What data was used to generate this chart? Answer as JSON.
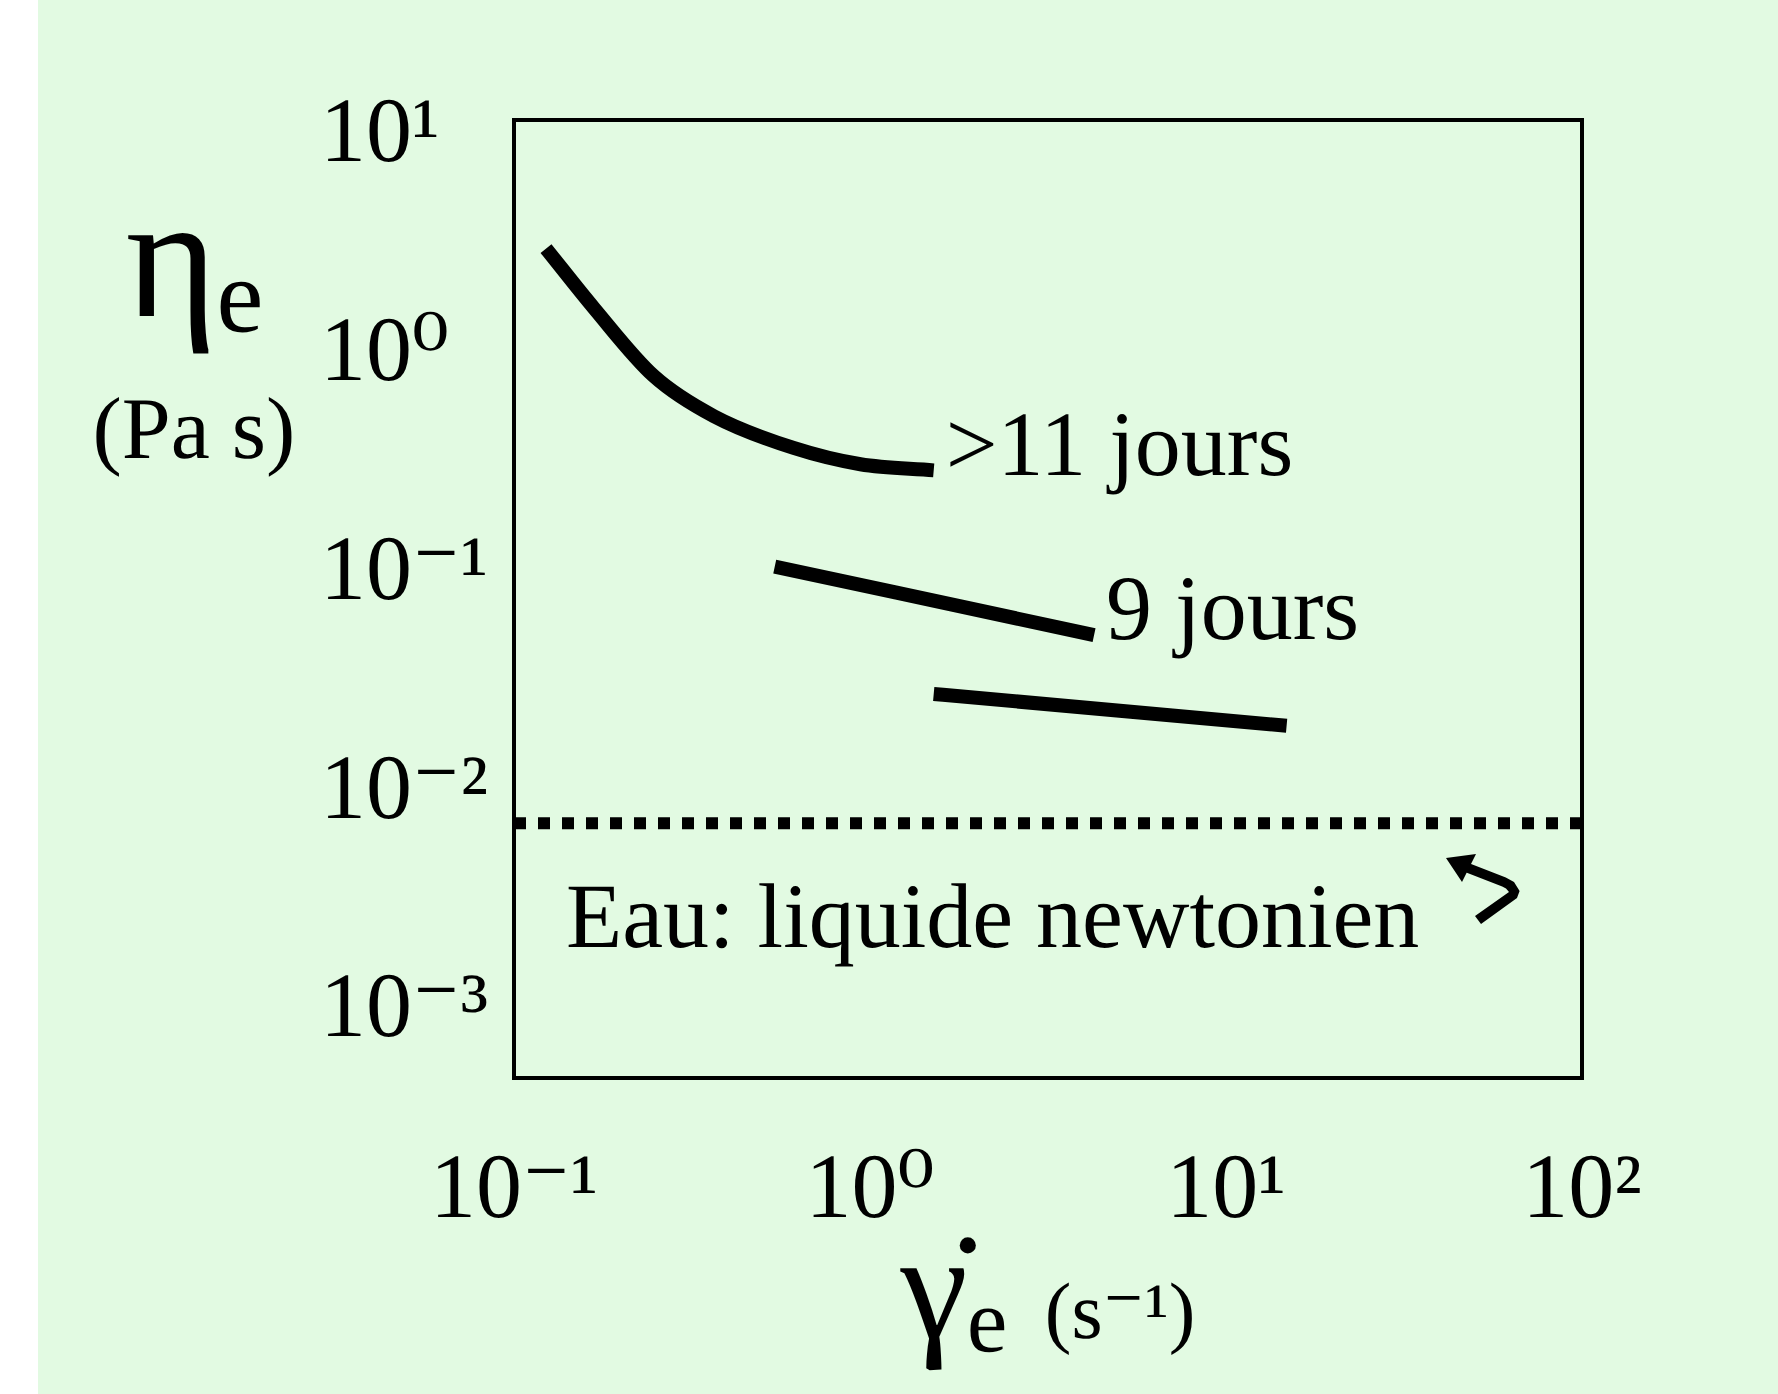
{
  "chart_data": {
    "type": "line",
    "xlabel": "γ̇ₑ (s⁻¹)",
    "ylabel": "ηₑ (Pa s)",
    "log": "xy",
    "marker": "none",
    "xlim": [
      0.1,
      100
    ],
    "xticks": [
      {
        "value": 0.1,
        "label": "10⁻¹"
      },
      {
        "value": 1,
        "label": "10⁰"
      },
      {
        "value": 10,
        "label": "10¹"
      },
      {
        "value": 100,
        "label": "10²"
      }
    ],
    "ylim": [
      0.0005,
      12
    ],
    "yticks": [
      {
        "value": 0.001,
        "label": "10⁻³"
      },
      {
        "value": 0.01,
        "label": "10⁻²"
      },
      {
        "value": 0.1,
        "label": "10⁻¹"
      },
      {
        "value": 1,
        "label": "10⁰"
      },
      {
        "value": 10,
        "label": "10¹"
      }
    ],
    "series": [
      {
        "name": ">11 jours",
        "color": "#000000",
        "x": [
          0.123,
          0.168,
          0.247,
          0.365,
          0.61,
          0.94,
          1.51
        ],
        "values": [
          3.1,
          1.65,
          0.81,
          0.53,
          0.38,
          0.32,
          0.3
        ]
      },
      {
        "name": "9 jours",
        "color": "#000000",
        "x": [
          0.54,
          4.26
        ],
        "values": [
          0.109,
          0.053
        ]
      },
      {
        "color": "#000000",
        "x": [
          1.51,
          14.8
        ],
        "values": [
          0.0285,
          0.0204
        ]
      }
    ],
    "ref_lines": [
      {
        "axis": "y",
        "value": 0.0073,
        "label": "Eau: liquide newtonien",
        "line_style": "dotted",
        "color": "#000000"
      }
    ]
  }
}
